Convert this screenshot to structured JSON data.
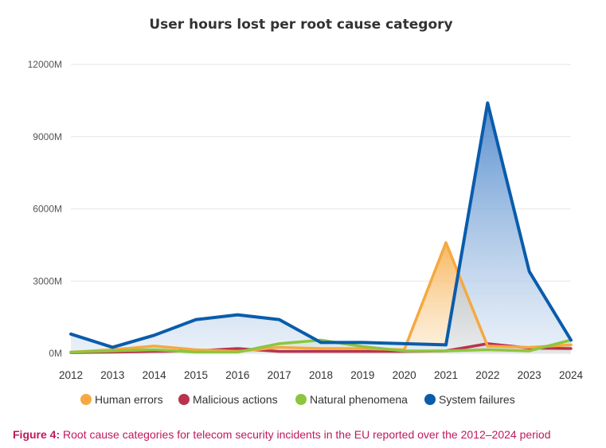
{
  "chart_data": {
    "type": "area",
    "title": "User hours lost per root cause category",
    "xlabel": "",
    "ylabel": "",
    "x": [
      "2012",
      "2013",
      "2014",
      "2015",
      "2016",
      "2017",
      "2018",
      "2019",
      "2020",
      "2021",
      "2022",
      "2023",
      "2024"
    ],
    "ylim": [
      0,
      12000
    ],
    "yticks": [
      0,
      3000,
      6000,
      9000,
      12000
    ],
    "ytick_labels": [
      "0M",
      "3000M",
      "6000M",
      "9000M",
      "12000M"
    ],
    "grid": true,
    "legend_position": "bottom",
    "series": [
      {
        "name": "Human errors",
        "color": "#f5a940",
        "values": [
          50,
          150,
          300,
          150,
          80,
          250,
          200,
          200,
          150,
          4600,
          300,
          250,
          350
        ]
      },
      {
        "name": "Malicious actions",
        "color": "#b9334d",
        "values": [
          30,
          50,
          80,
          100,
          200,
          80,
          80,
          80,
          80,
          100,
          400,
          220,
          200
        ]
      },
      {
        "name": "Natural phenomena",
        "color": "#8cc63f",
        "values": [
          50,
          100,
          150,
          50,
          50,
          400,
          550,
          280,
          100,
          100,
          150,
          100,
          550
        ]
      },
      {
        "name": "System failures",
        "color": "#0a5cab",
        "values": [
          800,
          250,
          750,
          1400,
          1600,
          1400,
          450,
          450,
          400,
          350,
          10400,
          3400,
          550
        ]
      }
    ]
  },
  "caption": {
    "label": "Figure 4:",
    "text": " Root cause categories for telecom security incidents in the EU reported over the 2012–2024 period"
  }
}
